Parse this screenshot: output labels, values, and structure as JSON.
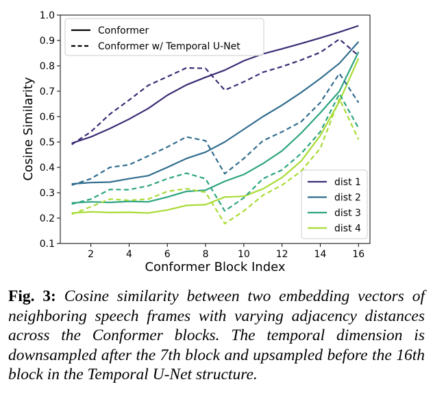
{
  "chart_data": {
    "type": "line",
    "xlabel": "Conformer Block Index",
    "ylabel": "Cosine Similarity",
    "xlim": [
      0.4,
      16.6
    ],
    "ylim": [
      0.1,
      1.0
    ],
    "xticks": [
      2,
      4,
      6,
      8,
      10,
      12,
      14,
      16
    ],
    "yticks": [
      0.1,
      0.2,
      0.3,
      0.4,
      0.5,
      0.6,
      0.7,
      0.8,
      0.9,
      1.0
    ],
    "grid": false,
    "legends": [
      {
        "position": "top-left",
        "entries": [
          {
            "label": "Conformer",
            "style": "solid"
          },
          {
            "label": "Conformer w/ Temporal U-Net",
            "style": "dashed"
          }
        ]
      },
      {
        "position": "bottom-right",
        "entries": [
          {
            "label": "dist 1",
            "color": "#3b2a74"
          },
          {
            "label": "dist 2",
            "color": "#2f6c8e"
          },
          {
            "label": "dist 3",
            "color": "#2ba37f"
          },
          {
            "label": "dist 4",
            "color": "#a8db34"
          }
        ]
      }
    ],
    "x": [
      1,
      2,
      3,
      4,
      5,
      6,
      7,
      8,
      9,
      10,
      11,
      12,
      13,
      14,
      15,
      16
    ],
    "series": [
      {
        "name": "dist 1",
        "style": "solid",
        "color": "#3b2a74",
        "values": [
          0.495,
          0.52,
          0.553,
          0.59,
          0.632,
          0.684,
          0.725,
          0.755,
          0.783,
          0.82,
          0.847,
          0.867,
          0.888,
          0.91,
          0.933,
          0.958
        ]
      },
      {
        "name": "dist 2",
        "style": "solid",
        "color": "#2f6c8e",
        "values": [
          0.335,
          0.34,
          0.342,
          0.355,
          0.367,
          0.4,
          0.435,
          0.46,
          0.5,
          0.55,
          0.6,
          0.645,
          0.695,
          0.75,
          0.81,
          0.895
        ]
      },
      {
        "name": "dist 3",
        "style": "solid",
        "color": "#2ba37f",
        "values": [
          0.26,
          0.264,
          0.262,
          0.266,
          0.264,
          0.283,
          0.305,
          0.31,
          0.345,
          0.372,
          0.415,
          0.465,
          0.535,
          0.615,
          0.7,
          0.855
        ]
      },
      {
        "name": "dist 4",
        "style": "solid",
        "color": "#a8db34",
        "values": [
          0.22,
          0.225,
          0.222,
          0.223,
          0.22,
          0.232,
          0.25,
          0.253,
          0.283,
          0.286,
          0.315,
          0.36,
          0.425,
          0.525,
          0.66,
          0.83
        ]
      },
      {
        "name": "dist 1",
        "style": "dashed",
        "color": "#3b2a74",
        "values": [
          0.49,
          0.54,
          0.61,
          0.665,
          0.723,
          0.757,
          0.792,
          0.79,
          0.704,
          0.737,
          0.775,
          0.797,
          0.823,
          0.853,
          0.905,
          0.84
        ]
      },
      {
        "name": "dist 2",
        "style": "dashed",
        "color": "#2f6c8e",
        "values": [
          0.33,
          0.355,
          0.4,
          0.41,
          0.445,
          0.48,
          0.52,
          0.505,
          0.375,
          0.435,
          0.505,
          0.54,
          0.58,
          0.655,
          0.77,
          0.655
        ]
      },
      {
        "name": "dist 3",
        "style": "dashed",
        "color": "#2ba37f",
        "values": [
          0.255,
          0.275,
          0.313,
          0.312,
          0.327,
          0.355,
          0.377,
          0.355,
          0.228,
          0.28,
          0.355,
          0.39,
          0.455,
          0.54,
          0.69,
          0.555
        ]
      },
      {
        "name": "dist 4",
        "style": "dashed",
        "color": "#a8db34",
        "values": [
          0.215,
          0.245,
          0.275,
          0.27,
          0.275,
          0.305,
          0.316,
          0.302,
          0.178,
          0.228,
          0.29,
          0.33,
          0.385,
          0.475,
          0.67,
          0.51
        ]
      }
    ]
  },
  "caption": {
    "label": "Fig. 3:",
    "text": "Cosine similarity between two embedding vectors of neighboring speech frames with varying adjacency distances across the Conformer blocks. The temporal dimension is downsampled after the 7th block and upsampled before the 16th block in the Temporal U-Net structure."
  }
}
